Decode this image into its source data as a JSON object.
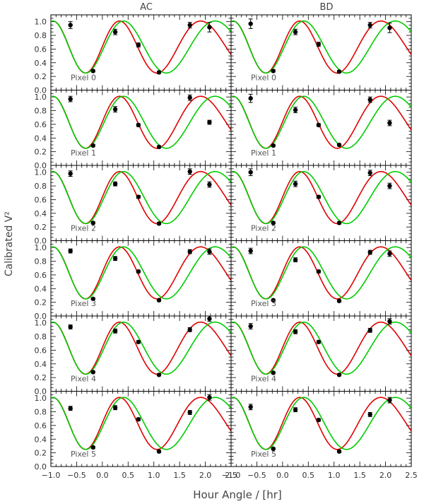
{
  "chart_data": {
    "type": "scatter",
    "columns": [
      "AC",
      "BD"
    ],
    "ylabel": "Calibrated V²",
    "xlabel": "Hour Angle / [hr]",
    "xlim": [
      -1.0,
      2.5
    ],
    "ylim": [
      0.0,
      1.1
    ],
    "xticks": [
      "−1.0",
      "−0.5",
      "0.0",
      "0.5",
      "1.0",
      "1.5",
      "2.0",
      "2.5"
    ],
    "yticks": [
      "0.0",
      "0.2",
      "0.4",
      "0.6",
      "0.8",
      "1.0"
    ],
    "grid": false,
    "series_colors": {
      "red": "#e00000",
      "green": "#00cc00",
      "points": "#000000"
    },
    "panels": [
      {
        "column": "AC",
        "label": "Pixel 0",
        "x": [
          -0.62,
          -0.18,
          0.25,
          0.7,
          1.1,
          1.7,
          2.08
        ],
        "y": [
          0.95,
          0.28,
          0.85,
          0.66,
          0.26,
          0.95,
          0.92
        ],
        "err": [
          0.05,
          0.015,
          0.04,
          0.03,
          0.015,
          0.04,
          0.07
        ]
      },
      {
        "column": "BD",
        "label": "Pixel 0",
        "x": [
          -0.62,
          -0.18,
          0.25,
          0.7,
          1.1,
          1.7,
          2.08
        ],
        "y": [
          0.97,
          0.28,
          0.85,
          0.67,
          0.27,
          0.95,
          0.91
        ],
        "err": [
          0.07,
          0.015,
          0.04,
          0.03,
          0.015,
          0.04,
          0.07
        ]
      },
      {
        "column": "AC",
        "label": "Pixel 1",
        "x": [
          -0.62,
          -0.18,
          0.25,
          0.7,
          1.1,
          1.7,
          2.08
        ],
        "y": [
          0.97,
          0.29,
          0.82,
          0.59,
          0.27,
          0.99,
          0.63
        ],
        "err": [
          0.04,
          0.015,
          0.04,
          0.02,
          0.015,
          0.04,
          0.03
        ]
      },
      {
        "column": "BD",
        "label": "Pixel 1",
        "x": [
          -0.62,
          -0.18,
          0.25,
          0.7,
          1.1,
          1.7,
          2.08
        ],
        "y": [
          0.98,
          0.29,
          0.81,
          0.59,
          0.3,
          0.96,
          0.62
        ],
        "err": [
          0.06,
          0.015,
          0.04,
          0.02,
          0.015,
          0.04,
          0.04
        ]
      },
      {
        "column": "AC",
        "label": "Pixel 2",
        "x": [
          -0.62,
          -0.18,
          0.25,
          0.7,
          1.1,
          1.7,
          2.08
        ],
        "y": [
          0.98,
          0.26,
          0.83,
          0.64,
          0.25,
          1.01,
          0.82
        ],
        "err": [
          0.04,
          0.015,
          0.03,
          0.02,
          0.015,
          0.04,
          0.04
        ]
      },
      {
        "column": "BD",
        "label": "Pixel 2",
        "x": [
          -0.62,
          -0.18,
          0.25,
          0.7,
          1.1,
          1.7,
          2.08
        ],
        "y": [
          1.0,
          0.26,
          0.83,
          0.64,
          0.26,
          0.99,
          0.8
        ],
        "err": [
          0.05,
          0.015,
          0.04,
          0.02,
          0.015,
          0.04,
          0.04
        ]
      },
      {
        "column": "AC",
        "label": "Pixel 3",
        "x": [
          -0.62,
          -0.18,
          0.25,
          0.7,
          1.1,
          1.7,
          2.08
        ],
        "y": [
          0.95,
          0.25,
          0.84,
          0.65,
          0.23,
          0.94,
          0.94
        ],
        "err": [
          0.03,
          0.015,
          0.03,
          0.02,
          0.015,
          0.03,
          0.04
        ]
      },
      {
        "column": "BD",
        "label": "Pixel 3",
        "x": [
          -0.62,
          -0.18,
          0.25,
          0.7,
          1.1,
          1.7,
          2.08
        ],
        "y": [
          0.95,
          0.23,
          0.82,
          0.65,
          0.22,
          0.93,
          0.91
        ],
        "err": [
          0.04,
          0.015,
          0.03,
          0.02,
          0.015,
          0.03,
          0.04
        ]
      },
      {
        "column": "AC",
        "label": "Pixel 4",
        "x": [
          -0.62,
          -0.18,
          0.25,
          0.7,
          1.1,
          1.7,
          2.08
        ],
        "y": [
          0.94,
          0.28,
          0.88,
          0.72,
          0.24,
          0.9,
          1.06
        ],
        "err": [
          0.03,
          0.015,
          0.03,
          0.02,
          0.015,
          0.03,
          0.04
        ]
      },
      {
        "column": "BD",
        "label": "Pixel 4",
        "x": [
          -0.62,
          -0.18,
          0.25,
          0.7,
          1.1,
          1.7,
          2.08
        ],
        "y": [
          0.95,
          0.27,
          0.87,
          0.72,
          0.24,
          0.89,
          1.02
        ],
        "err": [
          0.04,
          0.015,
          0.03,
          0.02,
          0.015,
          0.03,
          0.04
        ]
      },
      {
        "column": "AC",
        "label": "Pixel 5",
        "x": [
          -0.62,
          -0.18,
          0.25,
          0.7,
          1.1,
          1.7,
          2.08
        ],
        "y": [
          0.85,
          0.28,
          0.86,
          0.69,
          0.22,
          0.79,
          1.01
        ],
        "err": [
          0.03,
          0.015,
          0.03,
          0.02,
          0.015,
          0.03,
          0.04
        ]
      },
      {
        "column": "BD",
        "label": "Pixel 5",
        "x": [
          -0.62,
          -0.18,
          0.25,
          0.7,
          1.1,
          1.7,
          2.08
        ],
        "y": [
          0.87,
          0.26,
          0.83,
          0.68,
          0.22,
          0.76,
          0.97
        ],
        "err": [
          0.04,
          0.015,
          0.03,
          0.02,
          0.015,
          0.03,
          0.04
        ]
      }
    ],
    "model_curves": {
      "red": {
        "midline": 0.63,
        "amplitude": 0.38,
        "phase_ref_hr": -0.96,
        "period_poly": [
          1.25,
          0.0,
          0.072
        ]
      },
      "green": {
        "midline": 0.63,
        "amplitude": 0.38,
        "phase_ref_hr": -0.96,
        "period_poly": [
          1.19,
          0.26,
          0.0
        ]
      }
    }
  }
}
